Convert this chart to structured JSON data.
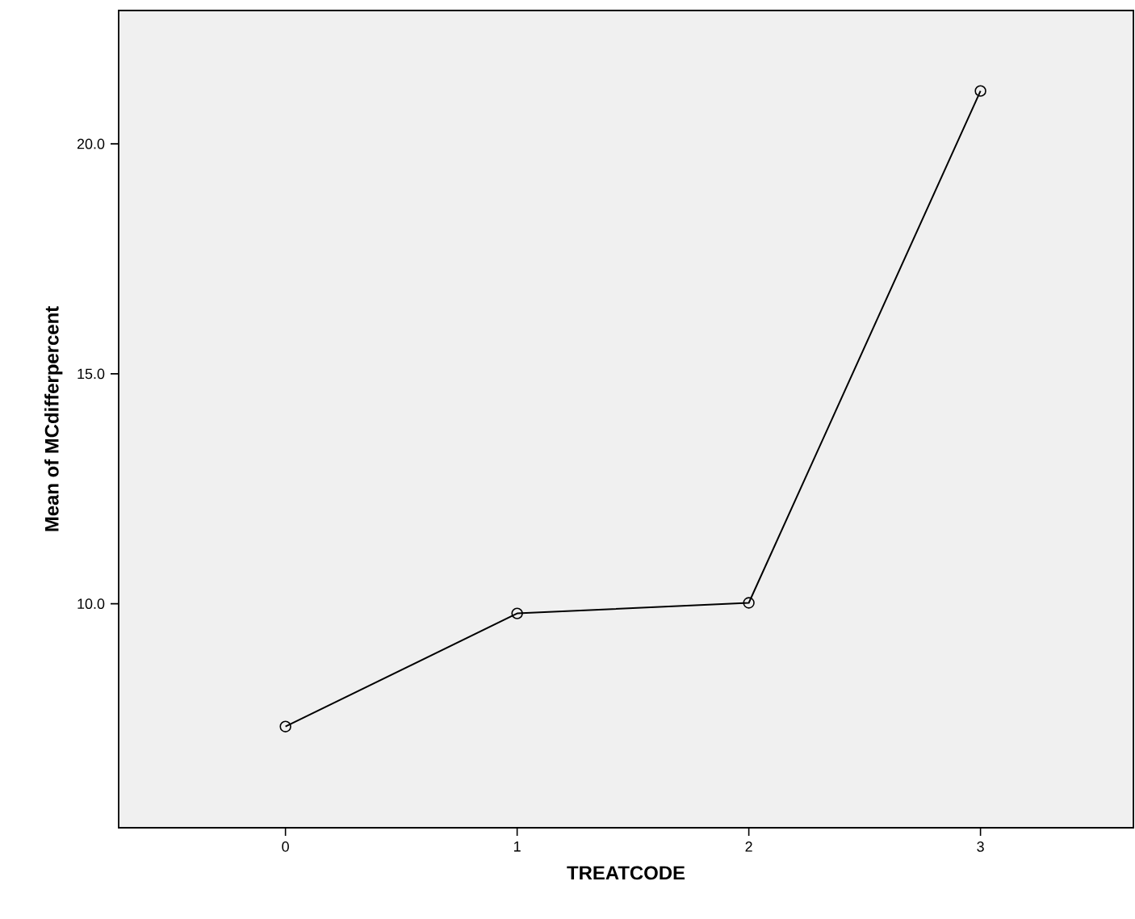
{
  "chart_data": {
    "type": "line",
    "xlabel": "TREATCODE",
    "ylabel": "Mean of MCdifferpercent",
    "x": [
      0,
      1,
      2,
      3
    ],
    "series": [
      {
        "color": "#000000",
        "values": [
          7.33,
          9.79,
          10.02,
          21.15
        ]
      }
    ],
    "xlim": [
      -0.72,
      3.66
    ],
    "xticks": [
      0,
      1,
      2,
      3
    ],
    "ylim": [
      5.13,
      22.9
    ],
    "yticks": [
      {
        "value": 10,
        "label": "10.0"
      },
      {
        "value": 15,
        "label": "15.0"
      },
      {
        "value": 20,
        "label": "20.0"
      }
    ],
    "marker": "circle",
    "line_style": "solid"
  }
}
